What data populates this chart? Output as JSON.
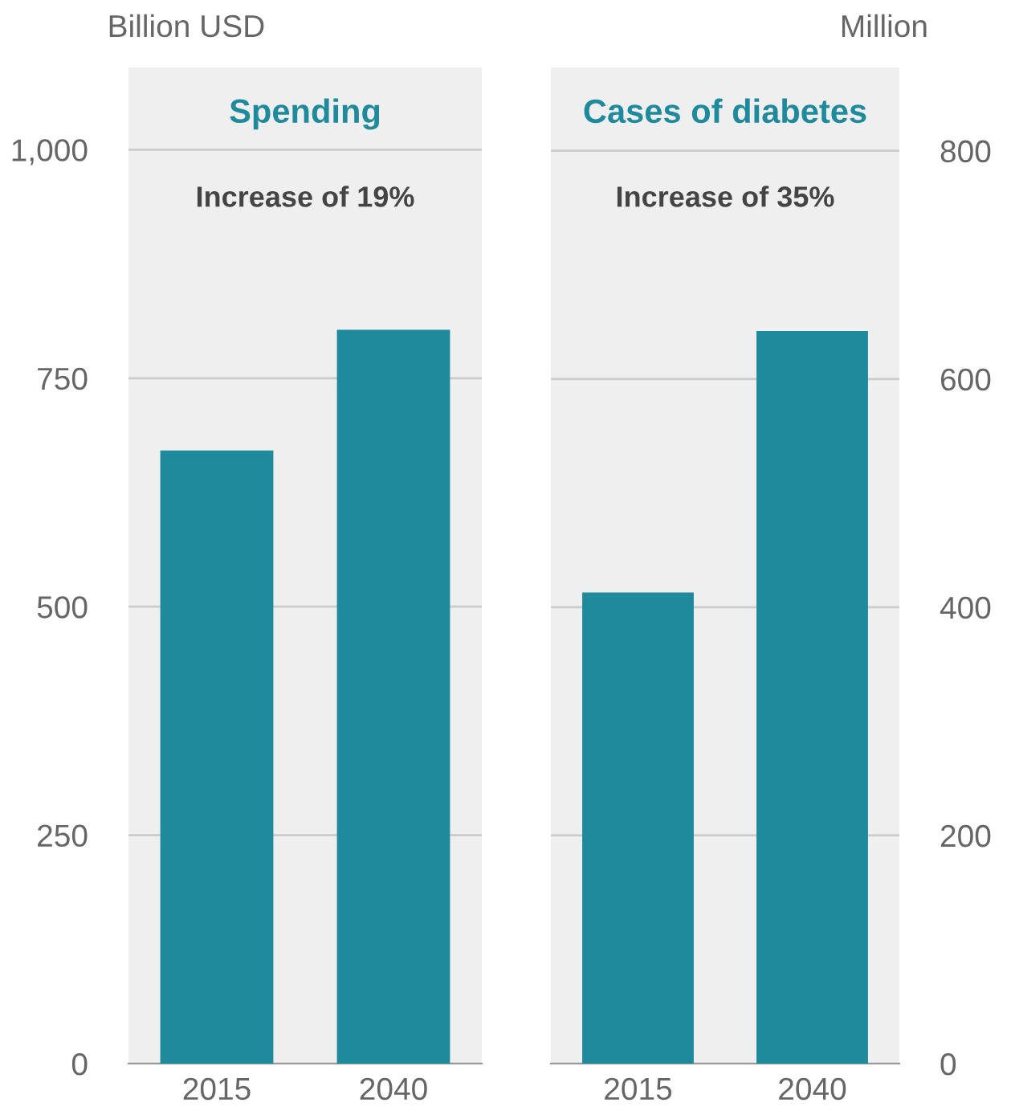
{
  "chart_data": [
    {
      "type": "bar",
      "title": "Spending",
      "ylabel": "Billion USD",
      "annotations": [
        "Increase of 19%"
      ],
      "categories": [
        "2015",
        "2040"
      ],
      "series": [
        {
          "color": "#1e8a9c",
          "values": [
            671,
            803
          ]
        }
      ],
      "ylim": [
        0,
        1090
      ],
      "yticks": [
        0,
        250,
        500,
        750,
        {
          "value": 1000,
          "label": "1,000"
        }
      ],
      "grid": "y"
    },
    {
      "type": "bar",
      "title": "Cases of diabetes",
      "y2label": "Million",
      "annotations": [
        "Increase of 35%"
      ],
      "categories": [
        "2015",
        "2040"
      ],
      "series": [
        {
          "color": "#1e8a9c",
          "values": [
            413,
            642
          ],
          "axis": "y2"
        }
      ],
      "y2lim": [
        0,
        873
      ],
      "y2ticks": [
        0,
        200,
        400,
        600,
        800
      ],
      "grid": "y"
    }
  ]
}
